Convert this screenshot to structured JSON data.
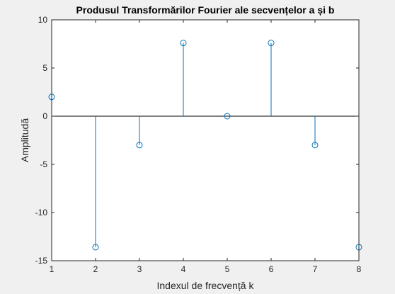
{
  "chart_data": {
    "type": "stem",
    "title": "Produsul Transformărilor Fourier ale secvențelor a și b",
    "xlabel": "Indexul de frecvență k",
    "ylabel": "Amplitudă",
    "xlim": [
      1,
      8
    ],
    "ylim": [
      -15,
      10
    ],
    "xticks": [
      1,
      2,
      3,
      4,
      5,
      6,
      7,
      8
    ],
    "yticks": [
      -15,
      -10,
      -5,
      0,
      5,
      10
    ],
    "baseline": 0,
    "grid": false,
    "series": [
      {
        "x": [
          1,
          2,
          3,
          4,
          5,
          6,
          7,
          8
        ],
        "values": [
          2.0,
          -13.6,
          -3.0,
          7.6,
          0.0,
          7.6,
          -3.0,
          -13.6
        ],
        "color": "#0072bd",
        "marker": "circle-open"
      }
    ]
  }
}
